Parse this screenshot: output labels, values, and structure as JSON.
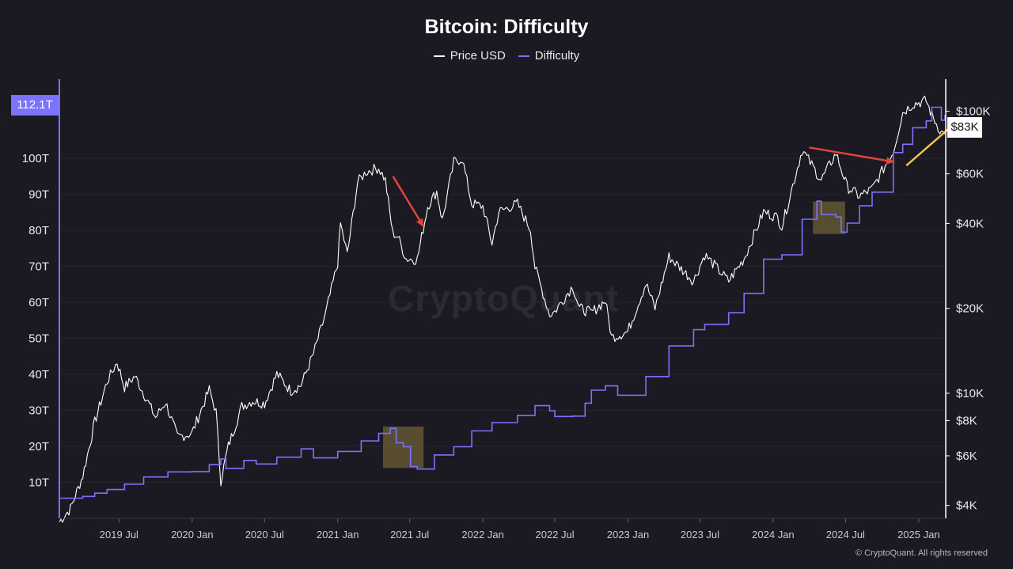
{
  "header": {
    "title": "Bitcoin: Difficulty"
  },
  "legend": [
    {
      "label": "Price USD",
      "color": "#ffffff"
    },
    {
      "label": "Difficulty",
      "color": "#7b73ff"
    }
  ],
  "watermark": "CryptoQuant",
  "footer": "© CryptoQuant. All rights reserved",
  "chart_data": {
    "type": "line",
    "title": "Bitcoin: Difficulty",
    "x_range": [
      "2019-02-01",
      "2025-03-10"
    ],
    "x_tick_labels": [
      "2019 Jul",
      "2020 Jan",
      "2020 Jul",
      "2021 Jan",
      "2021 Jul",
      "2022 Jan",
      "2022 Jul",
      "2023 Jan",
      "2023 Jul",
      "2024 Jan",
      "2024 Jul",
      "2025 Jan"
    ],
    "y_left": {
      "label": "Difficulty",
      "unit": "T",
      "ylim": [
        0,
        122
      ],
      "ticks": [
        10,
        20,
        30,
        40,
        50,
        60,
        70,
        80,
        90,
        100
      ],
      "tick_labels": [
        "10T",
        "20T",
        "30T",
        "40T",
        "50T",
        "60T",
        "70T",
        "80T",
        "90T",
        "100T"
      ],
      "last_value_label": "112.1T"
    },
    "y_right": {
      "label": "Price USD",
      "scale": "log",
      "ylim": [
        3600,
        130000
      ],
      "ticks": [
        4000,
        6000,
        8000,
        10000,
        20000,
        40000,
        60000,
        100000
      ],
      "tick_labels": [
        "$4K",
        "$6K",
        "$8K",
        "$10K",
        "$20K",
        "$40K",
        "$60K",
        "$100K"
      ],
      "last_value_label": "$83K"
    },
    "grid": true,
    "legend_position": "top-center",
    "series": [
      {
        "name": "Price USD",
        "axis": "right",
        "color": "#ffffff",
        "points": [
          [
            "2019-02-01",
            3500
          ],
          [
            "2019-03-01",
            3900
          ],
          [
            "2019-04-01",
            5100
          ],
          [
            "2019-05-01",
            7900
          ],
          [
            "2019-06-01",
            11000
          ],
          [
            "2019-06-26",
            12900
          ],
          [
            "2019-07-15",
            10500
          ],
          [
            "2019-08-10",
            11500
          ],
          [
            "2019-09-01",
            10000
          ],
          [
            "2019-10-01",
            8200
          ],
          [
            "2019-10-26",
            9300
          ],
          [
            "2019-11-25",
            7000
          ],
          [
            "2019-12-31",
            7200
          ],
          [
            "2020-02-13",
            10300
          ],
          [
            "2020-03-01",
            8600
          ],
          [
            "2020-03-13",
            4900
          ],
          [
            "2020-04-01",
            6500
          ],
          [
            "2020-05-05",
            9000
          ],
          [
            "2020-06-01",
            9400
          ],
          [
            "2020-07-01",
            9200
          ],
          [
            "2020-08-01",
            11700
          ],
          [
            "2020-09-05",
            10200
          ],
          [
            "2020-10-01",
            10700
          ],
          [
            "2020-11-01",
            13800
          ],
          [
            "2020-12-01",
            19000
          ],
          [
            "2021-01-01",
            29000
          ],
          [
            "2021-01-08",
            40000
          ],
          [
            "2021-01-25",
            31000
          ],
          [
            "2021-02-20",
            56000
          ],
          [
            "2021-03-13",
            61000
          ],
          [
            "2021-04-14",
            63000
          ],
          [
            "2021-05-01",
            57000
          ],
          [
            "2021-05-19",
            37000
          ],
          [
            "2021-06-01",
            36000
          ],
          [
            "2021-06-22",
            30000
          ],
          [
            "2021-07-20",
            29800
          ],
          [
            "2021-08-15",
            46000
          ],
          [
            "2021-09-07",
            52000
          ],
          [
            "2021-09-21",
            41000
          ],
          [
            "2021-10-20",
            66000
          ],
          [
            "2021-11-10",
            68000
          ],
          [
            "2021-12-04",
            47000
          ],
          [
            "2022-01-01",
            46000
          ],
          [
            "2022-01-24",
            34000
          ],
          [
            "2022-02-10",
            44000
          ],
          [
            "2022-03-29",
            47000
          ],
          [
            "2022-05-01",
            38000
          ],
          [
            "2022-05-12",
            28000
          ],
          [
            "2022-06-18",
            19000
          ],
          [
            "2022-07-01",
            19500
          ],
          [
            "2022-08-15",
            24000
          ],
          [
            "2022-09-01",
            20000
          ],
          [
            "2022-10-01",
            19300
          ],
          [
            "2022-11-05",
            21300
          ],
          [
            "2022-11-21",
            15800
          ],
          [
            "2022-12-31",
            16500
          ],
          [
            "2023-02-15",
            24500
          ],
          [
            "2023-03-10",
            20000
          ],
          [
            "2023-04-14",
            30500
          ],
          [
            "2023-06-15",
            25000
          ],
          [
            "2023-07-13",
            31000
          ],
          [
            "2023-09-11",
            25000
          ],
          [
            "2023-10-20",
            30000
          ],
          [
            "2023-12-08",
            44000
          ],
          [
            "2024-01-12",
            42000
          ],
          [
            "2024-01-23",
            39000
          ],
          [
            "2024-03-14",
            73000
          ],
          [
            "2024-05-01",
            57000
          ],
          [
            "2024-06-07",
            71000
          ],
          [
            "2024-07-05",
            54000
          ],
          [
            "2024-08-05",
            50000
          ],
          [
            "2024-09-06",
            53000
          ],
          [
            "2024-10-29",
            72000
          ],
          [
            "2024-11-22",
            99000
          ],
          [
            "2024-12-17",
            106000
          ],
          [
            "2025-01-20",
            109000
          ],
          [
            "2025-02-03",
            97000
          ],
          [
            "2025-02-27",
            84000
          ],
          [
            "2025-03-08",
            83000
          ]
        ]
      },
      {
        "name": "Difficulty",
        "axis": "left",
        "color": "#7b73ff",
        "points": [
          [
            "2019-02-01",
            5.6
          ],
          [
            "2019-04-01",
            6.1
          ],
          [
            "2019-05-01",
            7.0
          ],
          [
            "2019-06-01",
            8.0
          ],
          [
            "2019-07-15",
            9.5
          ],
          [
            "2019-09-01",
            11.5
          ],
          [
            "2019-11-01",
            12.9
          ],
          [
            "2019-12-31",
            13.0
          ],
          [
            "2020-02-13",
            14.9
          ],
          [
            "2020-03-13",
            16.5
          ],
          [
            "2020-03-26",
            13.9
          ],
          [
            "2020-05-10",
            16.1
          ],
          [
            "2020-06-10",
            15.1
          ],
          [
            "2020-08-01",
            17.0
          ],
          [
            "2020-10-01",
            19.3
          ],
          [
            "2020-11-01",
            16.8
          ],
          [
            "2021-01-01",
            18.6
          ],
          [
            "2021-03-01",
            21.5
          ],
          [
            "2021-04-14",
            23.6
          ],
          [
            "2021-05-13",
            25.0
          ],
          [
            "2021-05-28",
            21.0
          ],
          [
            "2021-06-15",
            19.9
          ],
          [
            "2021-07-03",
            14.4
          ],
          [
            "2021-07-20",
            13.7
          ],
          [
            "2021-09-01",
            17.6
          ],
          [
            "2021-10-20",
            19.9
          ],
          [
            "2021-12-04",
            24.3
          ],
          [
            "2022-01-24",
            26.6
          ],
          [
            "2022-03-29",
            28.6
          ],
          [
            "2022-05-12",
            31.3
          ],
          [
            "2022-06-18",
            29.9
          ],
          [
            "2022-07-01",
            28.3
          ],
          [
            "2022-08-15",
            28.4
          ],
          [
            "2022-09-15",
            32.0
          ],
          [
            "2022-10-01",
            35.6
          ],
          [
            "2022-11-05",
            36.8
          ],
          [
            "2022-12-06",
            34.2
          ],
          [
            "2023-02-15",
            39.4
          ],
          [
            "2023-04-14",
            47.9
          ],
          [
            "2023-06-15",
            52.4
          ],
          [
            "2023-07-13",
            53.9
          ],
          [
            "2023-09-11",
            57.1
          ],
          [
            "2023-10-20",
            62.5
          ],
          [
            "2023-12-08",
            72.0
          ],
          [
            "2024-01-23",
            73.2
          ],
          [
            "2024-03-14",
            83.1
          ],
          [
            "2024-04-20",
            88.1
          ],
          [
            "2024-05-01",
            84.4
          ],
          [
            "2024-06-07",
            83.7
          ],
          [
            "2024-06-20",
            79.5
          ],
          [
            "2024-07-05",
            82.0
          ],
          [
            "2024-08-05",
            86.8
          ],
          [
            "2024-09-06",
            90.6
          ],
          [
            "2024-10-29",
            101.6
          ],
          [
            "2024-11-22",
            103.9
          ],
          [
            "2024-12-17",
            108.5
          ],
          [
            "2025-01-20",
            110.4
          ],
          [
            "2025-02-03",
            114.2
          ],
          [
            "2025-02-27",
            110.6
          ],
          [
            "2025-03-08",
            112.1
          ]
        ]
      }
    ],
    "annotations": [
      {
        "type": "box",
        "x_range": [
          "2021-04-25",
          "2021-08-05"
        ],
        "y_range": [
          14,
          25.5
        ],
        "color": "#8a7a3a"
      },
      {
        "type": "box",
        "x_range": [
          "2024-04-10",
          "2024-06-30"
        ],
        "y_range": [
          79,
          88
        ],
        "color": "#8a7a3a"
      },
      {
        "type": "arrow",
        "from": [
          "2021-05-20",
          95
        ],
        "to": [
          "2021-08-05",
          81
        ],
        "axis": "left",
        "color": "#e0443a"
      },
      {
        "type": "arrow",
        "from": [
          "2024-04-01",
          103
        ],
        "to": [
          "2024-11-01",
          99
        ],
        "axis": "left",
        "color": "#e0443a"
      },
      {
        "type": "arrow",
        "from": [
          "2024-12-01",
          98
        ],
        "to": [
          "2025-04-05",
          110
        ],
        "axis": "left",
        "color": "#f2c14e"
      }
    ]
  }
}
